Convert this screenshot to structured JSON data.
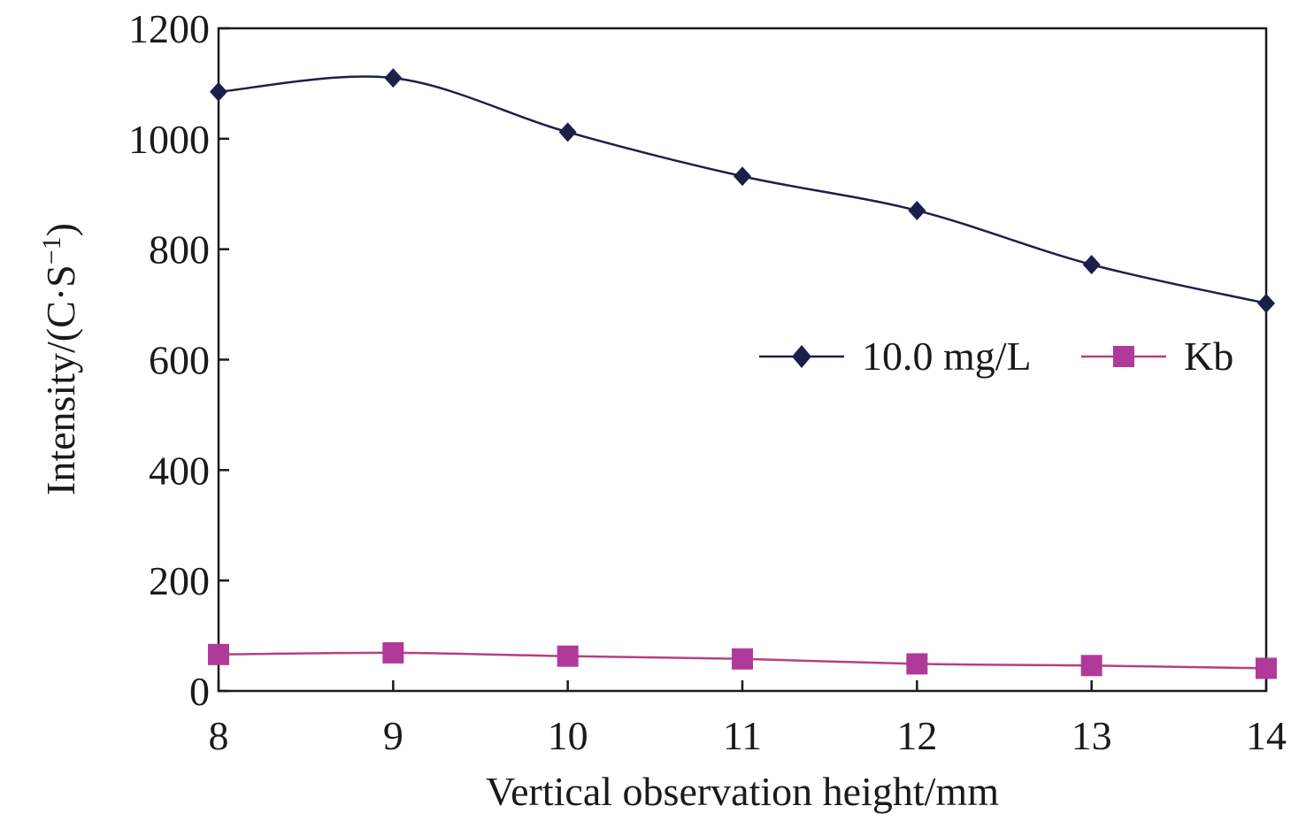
{
  "chart_data": {
    "type": "line",
    "title": "",
    "xlabel": "Vertical observation height/mm",
    "ylabel_main": "Intensity/(C·S",
    "ylabel_sup": "−1",
    "ylabel_close": ")",
    "x": [
      8,
      9,
      10,
      11,
      12,
      13,
      14
    ],
    "xlim": [
      8,
      14
    ],
    "ylim": [
      0,
      1200
    ],
    "xticks": [
      "8",
      "9",
      "10",
      "11",
      "12",
      "13",
      "14"
    ],
    "yticks": [
      "0",
      "200",
      "400",
      "600",
      "800",
      "1000",
      "1200"
    ],
    "grid": false,
    "legend_position": "center-right",
    "series": [
      {
        "name": "10.0 mg/L",
        "marker": "diamond",
        "color": "#1c1f4a",
        "values": [
          1085,
          1110,
          1012,
          932,
          870,
          772,
          702
        ]
      },
      {
        "name": "Kb",
        "marker": "square",
        "color": "#b03a9a",
        "line_color": "#b8407f",
        "values": [
          66,
          69,
          63,
          58,
          49,
          46,
          41
        ]
      }
    ]
  }
}
